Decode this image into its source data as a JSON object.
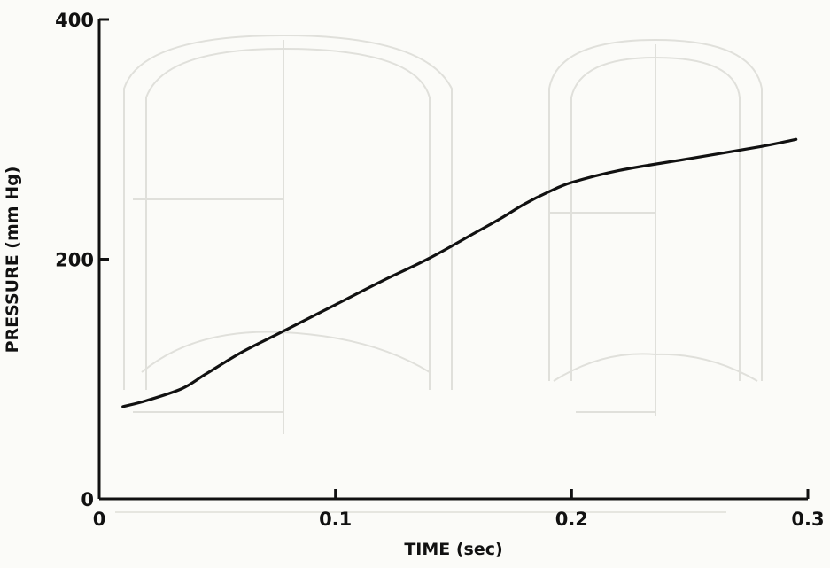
{
  "chart_data": {
    "type": "line",
    "xlabel": "TIME (sec)",
    "ylabel": "PRESSURE (mm Hg)",
    "xlim": [
      0,
      0.3
    ],
    "ylim": [
      0,
      400
    ],
    "x_ticks": [
      0,
      0.1,
      0.2,
      0.3
    ],
    "x_tick_labels": [
      "0",
      "0.1",
      "0.2",
      "0.3"
    ],
    "y_ticks": [
      0,
      200,
      400
    ],
    "y_tick_labels": [
      "0",
      "200",
      "400"
    ],
    "grid": false,
    "legend": "none",
    "series": [
      {
        "color": "#111111",
        "x": [
          0.01,
          0.02,
          0.035,
          0.045,
          0.06,
          0.075,
          0.09,
          0.1,
          0.12,
          0.14,
          0.16,
          0.17,
          0.18,
          0.19,
          0.2,
          0.22,
          0.25,
          0.28,
          0.295
        ],
        "y": [
          77,
          82,
          92,
          104,
          122,
          137,
          152,
          162,
          182,
          201,
          223,
          234,
          246,
          256,
          264,
          274,
          284,
          294,
          300
        ]
      }
    ]
  }
}
